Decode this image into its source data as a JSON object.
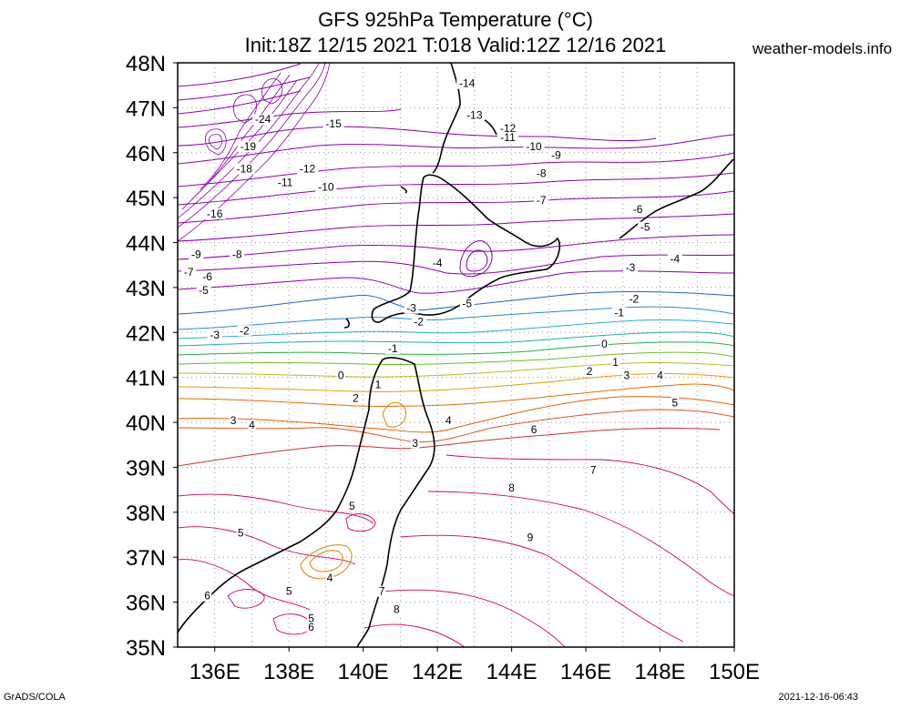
{
  "title_line1": "GFS 925hPa Temperature (°C)",
  "title_line2": "Init:18Z 12/15 2021 T:018 Valid:12Z 12/16 2021",
  "site": "weather-models.info",
  "credit": "GrADS/COLA",
  "timestamp": "2021-12-16-06:43",
  "map": {
    "lon_range": [
      135,
      150
    ],
    "lat_range": [
      35,
      48
    ],
    "lon_ticks": [
      "136E",
      "138E",
      "140E",
      "142E",
      "144E",
      "146E",
      "148E",
      "150E"
    ],
    "lat_ticks": [
      "35N",
      "36N",
      "37N",
      "38N",
      "39N",
      "40N",
      "41N",
      "42N",
      "43N",
      "44N",
      "45N",
      "46N",
      "47N",
      "48N"
    ],
    "grid": "dotted",
    "projection": "lat-lon",
    "colors": {
      "cold": "#8a00a8",
      "cool": "#2060d0",
      "neutral": "#20b040",
      "warm": "#e06000",
      "hot": "#d00060"
    },
    "contour_labels": [
      {
        "text": "-14",
        "lon": 142.8,
        "lat": 47.5
      },
      {
        "text": "-13",
        "lon": 143.0,
        "lat": 46.8
      },
      {
        "text": "-12",
        "lon": 143.9,
        "lat": 46.5
      },
      {
        "text": "-11",
        "lon": 143.9,
        "lat": 46.3
      },
      {
        "text": "-10",
        "lon": 144.6,
        "lat": 46.1
      },
      {
        "text": "-9",
        "lon": 145.2,
        "lat": 45.9
      },
      {
        "text": "-8",
        "lon": 144.8,
        "lat": 45.5
      },
      {
        "text": "-7",
        "lon": 144.8,
        "lat": 44.9
      },
      {
        "text": "-6",
        "lon": 147.4,
        "lat": 44.7
      },
      {
        "text": "-5",
        "lon": 147.6,
        "lat": 44.3
      },
      {
        "text": "-4",
        "lon": 148.4,
        "lat": 43.6
      },
      {
        "text": "-3",
        "lon": 147.2,
        "lat": 43.4
      },
      {
        "text": "-2",
        "lon": 147.3,
        "lat": 42.7
      },
      {
        "text": "-1",
        "lon": 146.9,
        "lat": 42.4
      },
      {
        "text": "0",
        "lon": 146.5,
        "lat": 41.7
      },
      {
        "text": "1",
        "lon": 146.8,
        "lat": 41.3
      },
      {
        "text": "2",
        "lon": 146.1,
        "lat": 41.1
      },
      {
        "text": "3",
        "lon": 147.1,
        "lat": 41.0
      },
      {
        "text": "4",
        "lon": 148.0,
        "lat": 41.0
      },
      {
        "text": "5",
        "lon": 148.4,
        "lat": 40.4
      },
      {
        "text": "6",
        "lon": 144.6,
        "lat": 39.8
      },
      {
        "text": "7",
        "lon": 146.2,
        "lat": 38.9
      },
      {
        "text": "8",
        "lon": 144.0,
        "lat": 38.5
      },
      {
        "text": "9",
        "lon": 144.5,
        "lat": 37.4
      },
      {
        "text": "-15",
        "lon": 139.2,
        "lat": 46.6
      },
      {
        "text": "-12",
        "lon": 138.5,
        "lat": 45.6
      },
      {
        "text": "-11",
        "lon": 137.9,
        "lat": 45.3
      },
      {
        "text": "-10",
        "lon": 139.0,
        "lat": 45.2
      },
      {
        "text": "-16",
        "lon": 136.0,
        "lat": 44.6
      },
      {
        "text": "-18",
        "lon": 136.8,
        "lat": 45.6
      },
      {
        "text": "-19",
        "lon": 136.9,
        "lat": 46.1
      },
      {
        "text": "-24",
        "lon": 137.3,
        "lat": 46.7
      },
      {
        "text": "-9",
        "lon": 135.5,
        "lat": 43.7
      },
      {
        "text": "-8",
        "lon": 136.6,
        "lat": 43.7
      },
      {
        "text": "-7",
        "lon": 135.3,
        "lat": 43.3
      },
      {
        "text": "-6",
        "lon": 135.8,
        "lat": 43.2
      },
      {
        "text": "-5",
        "lon": 135.7,
        "lat": 42.9
      },
      {
        "text": "-4",
        "lon": 142.0,
        "lat": 43.5
      },
      {
        "text": "-5",
        "lon": 142.8,
        "lat": 42.6
      },
      {
        "text": "-3",
        "lon": 141.3,
        "lat": 42.5
      },
      {
        "text": "-2",
        "lon": 141.5,
        "lat": 42.2
      },
      {
        "text": "-3",
        "lon": 136.0,
        "lat": 41.9
      },
      {
        "text": "-2",
        "lon": 136.8,
        "lat": 42.0
      },
      {
        "text": "-1",
        "lon": 140.8,
        "lat": 41.6
      },
      {
        "text": "0",
        "lon": 139.4,
        "lat": 41.0
      },
      {
        "text": "1",
        "lon": 140.4,
        "lat": 40.8
      },
      {
        "text": "2",
        "lon": 139.8,
        "lat": 40.5
      },
      {
        "text": "3",
        "lon": 136.5,
        "lat": 40.0
      },
      {
        "text": "4",
        "lon": 137.0,
        "lat": 39.9
      },
      {
        "text": "3",
        "lon": 141.4,
        "lat": 39.5
      },
      {
        "text": "4",
        "lon": 142.3,
        "lat": 40.0
      },
      {
        "text": "5",
        "lon": 139.7,
        "lat": 38.1
      },
      {
        "text": "5",
        "lon": 136.7,
        "lat": 37.5
      },
      {
        "text": "4",
        "lon": 139.1,
        "lat": 36.5
      },
      {
        "text": "5",
        "lon": 138.0,
        "lat": 36.2
      },
      {
        "text": "6",
        "lon": 135.8,
        "lat": 36.1
      },
      {
        "text": "5",
        "lon": 138.6,
        "lat": 35.6
      },
      {
        "text": "6",
        "lon": 138.6,
        "lat": 35.4
      },
      {
        "text": "7",
        "lon": 140.5,
        "lat": 36.2
      },
      {
        "text": "8",
        "lon": 140.9,
        "lat": 35.8
      }
    ]
  }
}
